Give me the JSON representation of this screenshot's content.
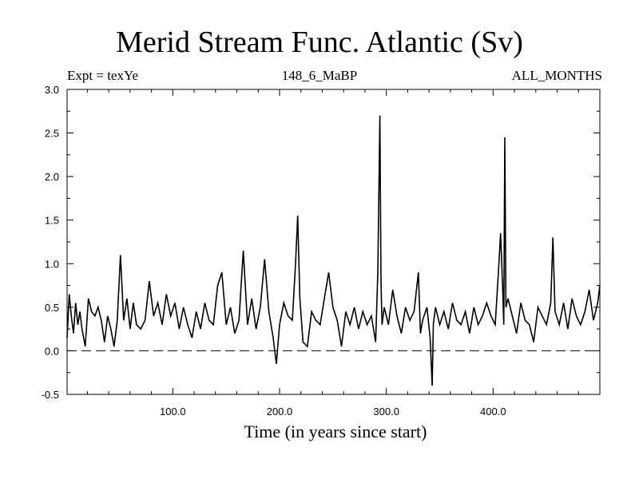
{
  "chart_data": {
    "type": "line",
    "title": "Merid Stream Func. Atlantic (Sv)",
    "subtitle_left": "Expt = texYe",
    "subtitle_center": "148_6_MaBP",
    "subtitle_right": "ALL_MONTHS",
    "xlabel": "Time (in years since start)",
    "ylabel": "",
    "xlim": [
      1,
      500
    ],
    "ylim": [
      -0.5,
      3.0
    ],
    "x_ticks": [
      100,
      200,
      300,
      400
    ],
    "x_tick_labels": [
      "100.0",
      "200.0",
      "300.0",
      "400.0"
    ],
    "y_ticks": [
      -0.5,
      0.0,
      0.5,
      1.0,
      1.5,
      2.0,
      2.5,
      3.0
    ],
    "y_tick_labels": [
      "-0.5",
      "0.0",
      "0.5",
      "1.0",
      "1.5",
      "2.0",
      "2.5",
      "3.0"
    ],
    "reference_line": {
      "y": 0.0,
      "style": "dashed"
    },
    "grid": false,
    "series": [
      {
        "color": "#000000",
        "x": [
          1,
          3,
          5,
          7,
          9,
          11,
          13,
          15,
          18,
          21,
          24,
          27,
          30,
          33,
          36,
          39,
          42,
          45,
          48,
          51,
          54,
          57,
          60,
          63,
          66,
          70,
          74,
          78,
          82,
          86,
          90,
          94,
          98,
          102,
          106,
          110,
          114,
          118,
          122,
          126,
          130,
          134,
          138,
          142,
          146,
          150,
          154,
          158,
          162,
          166,
          170,
          174,
          178,
          182,
          186,
          190,
          194,
          197,
          200,
          204,
          208,
          212,
          215,
          217,
          219,
          222,
          226,
          230,
          234,
          238,
          242,
          246,
          250,
          254,
          258,
          262,
          266,
          270,
          274,
          278,
          282,
          286,
          290,
          292,
          294,
          295,
          296,
          298,
          302,
          306,
          310,
          314,
          318,
          322,
          326,
          330,
          332,
          334,
          338,
          341,
          343,
          344,
          346,
          350,
          354,
          358,
          362,
          366,
          370,
          374,
          378,
          382,
          386,
          390,
          394,
          398,
          402,
          405,
          407,
          409,
          410,
          411,
          412,
          414,
          418,
          422,
          426,
          430,
          434,
          438,
          442,
          446,
          450,
          454,
          456,
          458,
          462,
          466,
          470,
          474,
          478,
          482,
          486,
          490,
          494,
          498,
          500
        ],
        "y": [
          0.15,
          0.65,
          0.4,
          0.2,
          0.55,
          0.3,
          0.45,
          0.25,
          0.05,
          0.6,
          0.45,
          0.4,
          0.5,
          0.35,
          0.1,
          0.4,
          0.25,
          0.05,
          0.35,
          1.1,
          0.35,
          0.6,
          0.25,
          0.55,
          0.3,
          0.25,
          0.35,
          0.8,
          0.4,
          0.55,
          0.3,
          0.65,
          0.4,
          0.55,
          0.25,
          0.5,
          0.3,
          0.15,
          0.45,
          0.25,
          0.55,
          0.35,
          0.3,
          0.75,
          0.9,
          0.3,
          0.5,
          0.2,
          0.35,
          1.15,
          0.3,
          0.6,
          0.25,
          0.5,
          1.05,
          0.45,
          0.15,
          -0.15,
          0.3,
          0.55,
          0.4,
          0.35,
          1.0,
          1.55,
          0.6,
          0.1,
          0.05,
          0.45,
          0.35,
          0.3,
          0.6,
          0.9,
          0.5,
          0.35,
          0.05,
          0.45,
          0.3,
          0.5,
          0.25,
          0.45,
          0.3,
          0.4,
          0.1,
          0.9,
          2.7,
          0.8,
          0.3,
          0.5,
          0.3,
          0.7,
          0.4,
          0.2,
          0.5,
          0.35,
          0.45,
          0.9,
          0.2,
          0.35,
          0.5,
          0.15,
          -0.4,
          0.3,
          0.5,
          0.3,
          0.45,
          0.25,
          0.55,
          0.35,
          0.3,
          0.45,
          0.2,
          0.5,
          0.3,
          0.4,
          0.55,
          0.4,
          0.3,
          0.9,
          1.35,
          0.7,
          0.3,
          2.45,
          0.5,
          0.6,
          0.4,
          0.2,
          0.55,
          0.35,
          0.3,
          0.1,
          0.5,
          0.4,
          0.3,
          0.55,
          1.3,
          0.45,
          0.3,
          0.55,
          0.25,
          0.6,
          0.4,
          0.3,
          0.45,
          0.7,
          0.35,
          0.55,
          0.75
        ]
      }
    ]
  }
}
